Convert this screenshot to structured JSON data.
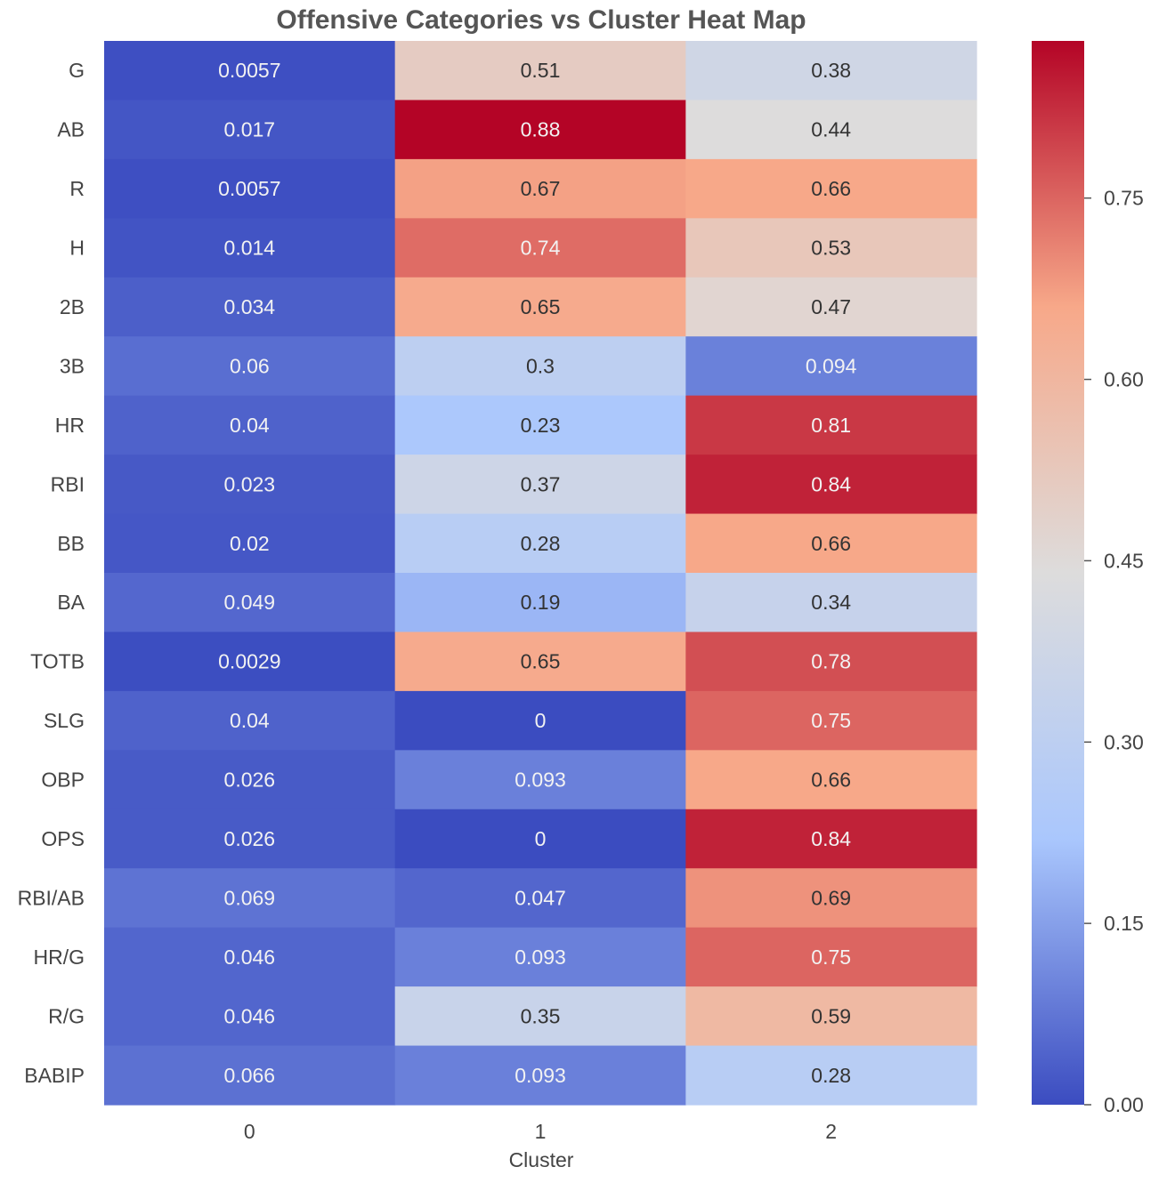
{
  "chart_data": {
    "type": "heatmap",
    "title": "Offensive Categories vs Cluster Heat Map",
    "xlabel": "Cluster",
    "ylabel": "",
    "columns": [
      "0",
      "1",
      "2"
    ],
    "rows": [
      "G",
      "AB",
      "R",
      "H",
      "2B",
      "3B",
      "HR",
      "RBI",
      "BB",
      "BA",
      "TOTB",
      "SLG",
      "OBP",
      "OPS",
      "RBI/AB",
      "HR/G",
      "R/G",
      "BABIP"
    ],
    "values": [
      [
        0.0057,
        0.51,
        0.38
      ],
      [
        0.017,
        0.88,
        0.44
      ],
      [
        0.0057,
        0.67,
        0.66
      ],
      [
        0.014,
        0.74,
        0.53
      ],
      [
        0.034,
        0.65,
        0.47
      ],
      [
        0.06,
        0.3,
        0.094
      ],
      [
        0.04,
        0.23,
        0.81
      ],
      [
        0.023,
        0.37,
        0.84
      ],
      [
        0.02,
        0.28,
        0.66
      ],
      [
        0.049,
        0.19,
        0.34
      ],
      [
        0.0029,
        0.65,
        0.78
      ],
      [
        0.04,
        0,
        0.75
      ],
      [
        0.026,
        0.093,
        0.66
      ],
      [
        0.026,
        0,
        0.84
      ],
      [
        0.069,
        0.047,
        0.69
      ],
      [
        0.046,
        0.093,
        0.75
      ],
      [
        0.046,
        0.35,
        0.59
      ],
      [
        0.066,
        0.093,
        0.28
      ]
    ],
    "cell_labels": [
      [
        "0.0057",
        "0.51",
        "0.38"
      ],
      [
        "0.017",
        "0.88",
        "0.44"
      ],
      [
        "0.0057",
        "0.67",
        "0.66"
      ],
      [
        "0.014",
        "0.74",
        "0.53"
      ],
      [
        "0.034",
        "0.65",
        "0.47"
      ],
      [
        "0.06",
        "0.3",
        "0.094"
      ],
      [
        "0.04",
        "0.23",
        "0.81"
      ],
      [
        "0.023",
        "0.37",
        "0.84"
      ],
      [
        "0.02",
        "0.28",
        "0.66"
      ],
      [
        "0.049",
        "0.19",
        "0.34"
      ],
      [
        "0.0029",
        "0.65",
        "0.78"
      ],
      [
        "0.04",
        "0",
        "0.75"
      ],
      [
        "0.026",
        "0.093",
        "0.66"
      ],
      [
        "0.026",
        "0",
        "0.84"
      ],
      [
        "0.069",
        "0.047",
        "0.69"
      ],
      [
        "0.046",
        "0.093",
        "0.75"
      ],
      [
        "0.046",
        "0.35",
        "0.59"
      ],
      [
        "0.066",
        "0.093",
        "0.28"
      ]
    ],
    "colormap": "coolwarm",
    "colormap_stops": [
      "#3b4cc0",
      "#aac7fd",
      "#dddcdc",
      "#f7a889",
      "#b40426"
    ],
    "vmin": 0,
    "vmax": 0.88,
    "colorbar": {
      "ticks": [
        0,
        0.15,
        0.3,
        0.45,
        0.6,
        0.75
      ],
      "tick_labels": [
        "0.00",
        "0.15",
        "0.30",
        "0.45",
        "0.60",
        "0.75"
      ]
    },
    "grid": false,
    "legend": "colorbar-right"
  }
}
